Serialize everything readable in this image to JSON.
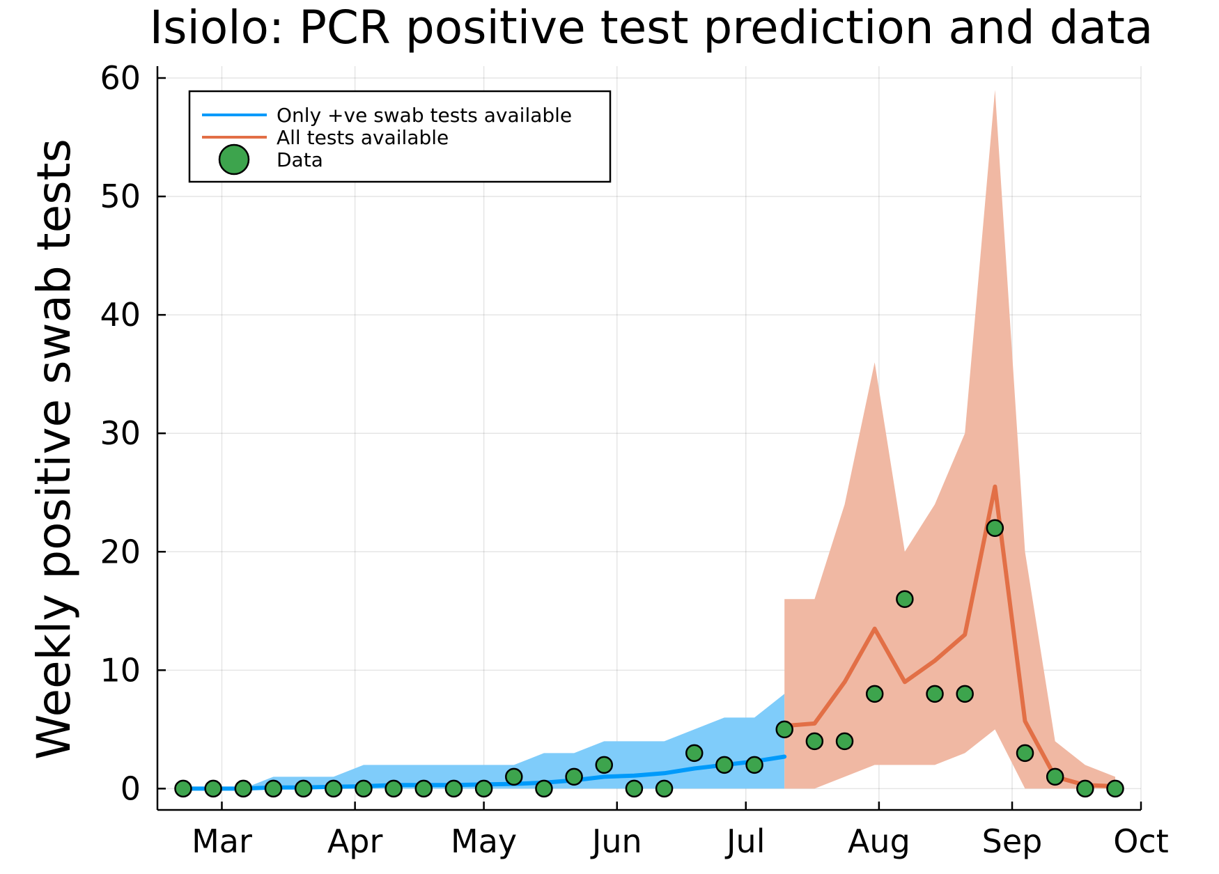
{
  "chart_data": {
    "type": "line",
    "title": "Isiolo: PCR positive test prediction and data",
    "xlabel": "",
    "ylabel": "Weekly positive swab tests",
    "ylim": [
      -1.8,
      61
    ],
    "yticks": [
      0,
      10,
      20,
      30,
      40,
      50,
      60
    ],
    "xlim": [
      "2021-02-14",
      "2021-10-01"
    ],
    "xticks": [
      {
        "date": "2021-03-01",
        "label": "Mar"
      },
      {
        "date": "2021-04-01",
        "label": "Apr"
      },
      {
        "date": "2021-05-01",
        "label": "May"
      },
      {
        "date": "2021-06-01",
        "label": "Jun"
      },
      {
        "date": "2021-07-01",
        "label": "Jul"
      },
      {
        "date": "2021-08-01",
        "label": "Aug"
      },
      {
        "date": "2021-09-01",
        "label": "Sep"
      },
      {
        "date": "2021-10-01",
        "label": "Oct"
      }
    ],
    "grid": true,
    "legend": {
      "placement": "top-left",
      "entries": [
        {
          "label": "Only +ve swab tests available",
          "kind": "line",
          "color": "#009AFA"
        },
        {
          "label": "All tests available",
          "kind": "line",
          "color": "#E26F46"
        },
        {
          "label": "Data",
          "kind": "marker",
          "color": "#3DA44D"
        }
      ]
    },
    "series": [
      {
        "name": "Only +ve swab tests available",
        "kind": "line_with_band",
        "color": "#009AFA",
        "band_color": "#7FCCFA",
        "x": [
          "2021-02-20",
          "2021-02-27",
          "2021-03-06",
          "2021-03-13",
          "2021-03-20",
          "2021-03-27",
          "2021-04-03",
          "2021-04-10",
          "2021-04-17",
          "2021-04-24",
          "2021-05-01",
          "2021-05-08",
          "2021-05-15",
          "2021-05-22",
          "2021-05-29",
          "2021-06-05",
          "2021-06-12",
          "2021-06-19",
          "2021-06-26",
          "2021-07-03",
          "2021-07-10"
        ],
        "y": [
          0,
          0,
          0,
          0.1,
          0.1,
          0.15,
          0.2,
          0.3,
          0.3,
          0.3,
          0.35,
          0.4,
          0.5,
          0.7,
          1.0,
          1.1,
          1.3,
          1.7,
          2.0,
          2.3,
          2.7
        ],
        "lower": [
          0,
          0,
          0,
          0,
          0,
          0,
          0,
          0,
          0,
          0,
          0,
          0,
          0,
          0,
          0,
          0,
          0,
          0,
          0,
          0,
          0
        ],
        "upper": [
          0,
          0,
          0,
          1,
          1,
          1,
          2,
          2,
          2,
          2,
          2,
          2,
          3,
          3,
          4,
          4,
          4,
          5,
          6,
          6,
          8
        ]
      },
      {
        "name": "All tests available",
        "kind": "line_with_band",
        "color": "#E26F46",
        "band_color": "#F0B8A3",
        "x": [
          "2021-07-10",
          "2021-07-17",
          "2021-07-24",
          "2021-07-31",
          "2021-08-07",
          "2021-08-14",
          "2021-08-21",
          "2021-08-28",
          "2021-09-04",
          "2021-09-11",
          "2021-09-18",
          "2021-09-25"
        ],
        "y": [
          5.3,
          5.5,
          9.0,
          13.5,
          9.0,
          10.8,
          13.0,
          25.5,
          5.7,
          1.0,
          0.3,
          0.2
        ],
        "lower": [
          0,
          0,
          1.0,
          2.0,
          2.0,
          2.0,
          3.0,
          5.0,
          0,
          0,
          0,
          0
        ],
        "upper": [
          16,
          16,
          24,
          36,
          20,
          24,
          30,
          59,
          20,
          4,
          2,
          1
        ]
      },
      {
        "name": "Data",
        "kind": "scatter",
        "color": "#3DA44D",
        "x": [
          "2021-02-20",
          "2021-02-27",
          "2021-03-06",
          "2021-03-13",
          "2021-03-20",
          "2021-03-27",
          "2021-04-03",
          "2021-04-10",
          "2021-04-17",
          "2021-04-24",
          "2021-05-01",
          "2021-05-08",
          "2021-05-15",
          "2021-05-22",
          "2021-05-29",
          "2021-06-05",
          "2021-06-12",
          "2021-06-19",
          "2021-06-26",
          "2021-07-03",
          "2021-07-10",
          "2021-07-17",
          "2021-07-24",
          "2021-07-31",
          "2021-08-07",
          "2021-08-14",
          "2021-08-21",
          "2021-08-28",
          "2021-09-04",
          "2021-09-11",
          "2021-09-18",
          "2021-09-25"
        ],
        "y": [
          0,
          0,
          0,
          0,
          0,
          0,
          0,
          0,
          0,
          0,
          0,
          1,
          0,
          1,
          2,
          0,
          0,
          3,
          2,
          2,
          5,
          4,
          4,
          8,
          16,
          8,
          8,
          22,
          3,
          1,
          0,
          0
        ]
      }
    ]
  }
}
